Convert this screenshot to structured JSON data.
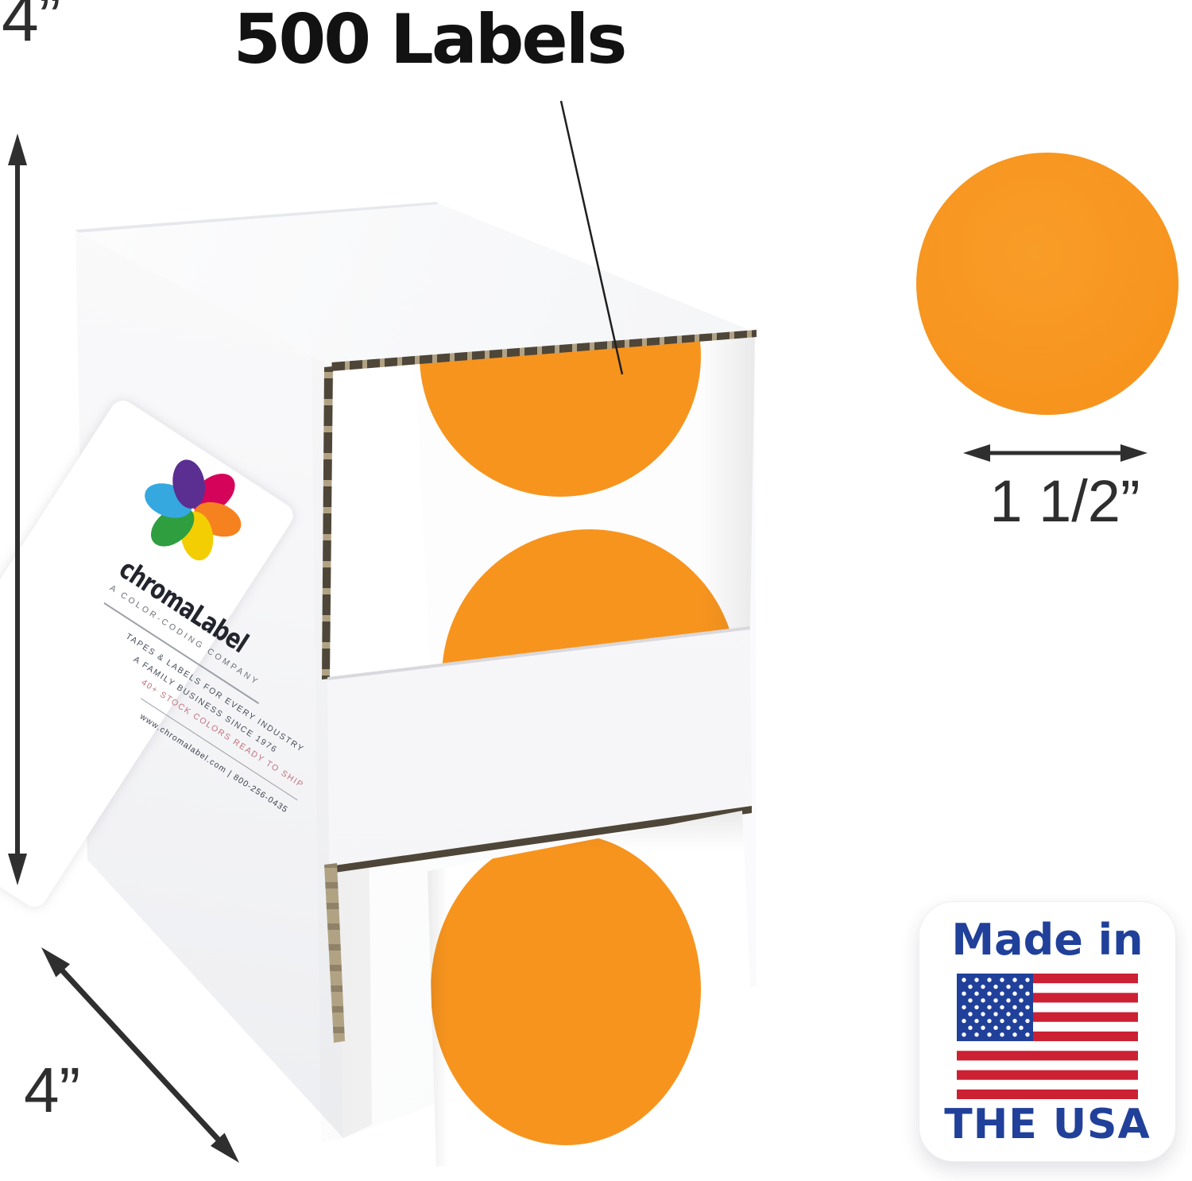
{
  "title": {
    "text": "500 Labels"
  },
  "annotations": {
    "height_label": "4”",
    "depth_label": "4”",
    "diameter_label": "1 1/2”"
  },
  "badge": {
    "line1": "Made in",
    "line2": "THE USA"
  },
  "box_label": {
    "brand": "chromaLabel",
    "tagline": "A COLOR-CODING COMPANY",
    "lines": [
      "TAPES & LABELS FOR EVERY INDUSTRY",
      "A FAMILY BUSINESS SINCE 1976",
      "40+ STOCK COLORS READY TO SHIP"
    ],
    "contact": "www.chromalabel.com  |  800-256-0435"
  },
  "colors": {
    "label_orange": "#F7941E",
    "arrow_ink": "#2F2F2F",
    "title_ink": "#121212",
    "badge_blue": "#20409A",
    "flag_red": "#CC2033",
    "brand_ink": "#23252E",
    "tagline_ink": "#6A6E76",
    "accent_rose": "#C2707B",
    "cardboard_tan": "#B1A284",
    "slit_dark": "#4E4638"
  },
  "logo": {
    "petal_colors": [
      "#D6035B",
      "#F5821F",
      "#F2CE02",
      "#2E9E3F",
      "#35A8E0",
      "#5B2E91"
    ]
  }
}
